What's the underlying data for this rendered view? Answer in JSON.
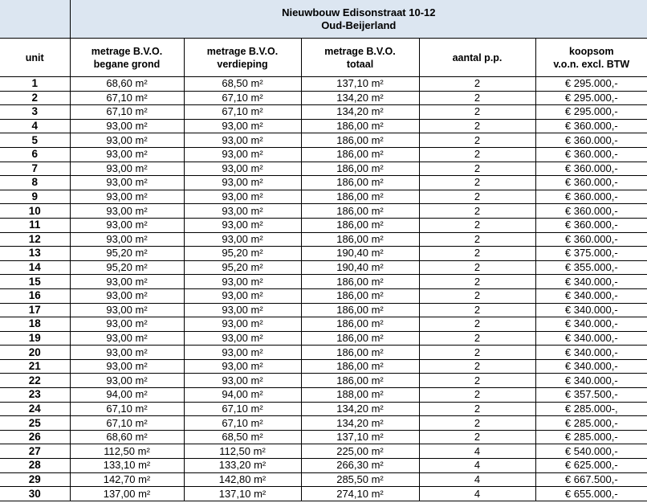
{
  "title": {
    "line1": "Nieuwbouw Edisonstraat 10-12",
    "line2": "Oud-Beijerland"
  },
  "columns": [
    {
      "line1": "unit",
      "line2": ""
    },
    {
      "line1": "metrage B.V.O.",
      "line2": "begane grond"
    },
    {
      "line1": "metrage B.V.O.",
      "line2": "verdieping"
    },
    {
      "line1": "metrage B.V.O.",
      "line2": "totaal"
    },
    {
      "line1": "aantal p.p.",
      "line2": ""
    },
    {
      "line1": "koopsom",
      "line2": "v.o.n. excl. BTW"
    }
  ],
  "colors": {
    "header_bg": "#dce6f1",
    "border": "#000000"
  },
  "rows": [
    [
      "1",
      "68,60 m²",
      "68,50 m²",
      "137,10 m²",
      "2",
      "€ 295.000,-"
    ],
    [
      "2",
      "67,10 m²",
      "67,10 m²",
      "134,20 m²",
      "2",
      "€ 295.000,-"
    ],
    [
      "3",
      "67,10 m²",
      "67,10 m²",
      "134,20 m²",
      "2",
      "€ 295.000,-"
    ],
    [
      "4",
      "93,00 m²",
      "93,00 m²",
      "186,00 m²",
      "2",
      "€ 360.000,-"
    ],
    [
      "5",
      "93,00 m²",
      "93,00 m²",
      "186,00 m²",
      "2",
      "€ 360.000,-"
    ],
    [
      "6",
      "93,00 m²",
      "93,00 m²",
      "186,00 m²",
      "2",
      "€ 360.000,-"
    ],
    [
      "7",
      "93,00 m²",
      "93,00 m²",
      "186,00 m²",
      "2",
      "€ 360.000,-"
    ],
    [
      "8",
      "93,00 m²",
      "93,00 m²",
      "186,00 m²",
      "2",
      "€ 360.000,-"
    ],
    [
      "9",
      "93,00 m²",
      "93,00 m²",
      "186,00 m²",
      "2",
      "€ 360.000,-"
    ],
    [
      "10",
      "93,00 m²",
      "93,00 m²",
      "186,00 m²",
      "2",
      "€ 360.000,-"
    ],
    [
      "11",
      "93,00 m²",
      "93,00 m²",
      "186,00 m²",
      "2",
      "€ 360.000,-"
    ],
    [
      "12",
      "93,00 m²",
      "93,00 m²",
      "186,00 m²",
      "2",
      "€ 360.000,-"
    ],
    [
      "13",
      "95,20 m²",
      "95,20 m²",
      "190,40 m²",
      "2",
      "€ 375.000,-"
    ],
    [
      "14",
      "95,20 m²",
      "95,20 m²",
      "190,40 m²",
      "2",
      "€ 355.000,-"
    ],
    [
      "15",
      "93,00 m²",
      "93,00 m²",
      "186,00 m²",
      "2",
      "€ 340.000,-"
    ],
    [
      "16",
      "93,00 m²",
      "93,00 m²",
      "186,00 m²",
      "2",
      "€ 340.000,-"
    ],
    [
      "17",
      "93,00 m²",
      "93,00 m²",
      "186,00 m²",
      "2",
      "€ 340.000,-"
    ],
    [
      "18",
      "93,00 m²",
      "93,00 m²",
      "186,00 m²",
      "2",
      "€ 340.000,-"
    ],
    [
      "19",
      "93,00 m²",
      "93,00 m²",
      "186,00 m²",
      "2",
      "€ 340.000,-"
    ],
    [
      "20",
      "93,00 m²",
      "93,00 m²",
      "186,00 m²",
      "2",
      "€ 340.000,-"
    ],
    [
      "21",
      "93,00 m²",
      "93,00 m²",
      "186,00 m²",
      "2",
      "€ 340.000,-"
    ],
    [
      "22",
      "93,00 m²",
      "93,00 m²",
      "186,00 m²",
      "2",
      "€ 340.000,-"
    ],
    [
      "23",
      "94,00 m²",
      "94,00 m²",
      "188,00 m²",
      "2",
      "€ 357.500,-"
    ],
    [
      "24",
      "67,10 m²",
      "67,10 m²",
      "134,20 m²",
      "2",
      "€ 285.000-,"
    ],
    [
      "25",
      "67,10 m²",
      "67,10 m²",
      "134,20 m²",
      "2",
      "€ 285.000,-"
    ],
    [
      "26",
      "68,60 m²",
      "68,50 m²",
      "137,10 m²",
      "2",
      "€ 285.000,-"
    ],
    [
      "27",
      "112,50 m²",
      "112,50 m²",
      "225,00 m²",
      "4",
      "€ 540.000,-"
    ],
    [
      "28",
      "133,10 m²",
      "133,20 m²",
      "266,30 m²",
      "4",
      "€ 625.000,-"
    ],
    [
      "29",
      "142,70 m²",
      "142,80 m²",
      "285,50 m²",
      "4",
      "€ 667.500,-"
    ],
    [
      "30",
      "137,00 m²",
      "137,10 m²",
      "274,10 m²",
      "4",
      "€ 655.000,-"
    ]
  ]
}
